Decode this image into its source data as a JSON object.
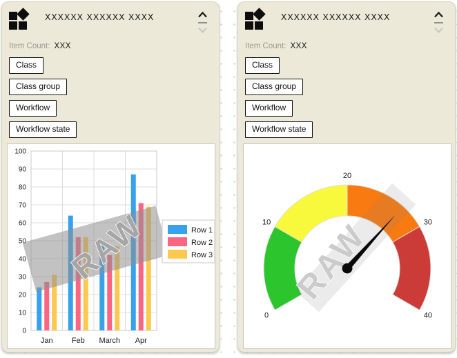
{
  "watermark_text": "RAW",
  "cards": [
    {
      "title": "XXXXXX XXXXXX XXXX",
      "item_count_label": "Item Count:",
      "item_count_value": "XXX",
      "filters": [
        "Class",
        "Class group",
        "Workflow",
        "Workflow state"
      ]
    },
    {
      "title": "XXXXXX XXXXXX XXXX",
      "item_count_label": "Item Count:",
      "item_count_value": "XXX",
      "filters": [
        "Class",
        "Class group",
        "Workflow",
        "Workflow state"
      ]
    }
  ],
  "chart_data": [
    {
      "type": "bar",
      "categories": [
        "Jan",
        "Feb",
        "March",
        "Apr"
      ],
      "series": [
        {
          "name": "Row 1",
          "color": "#36A2EB",
          "values": [
            24,
            64,
            50,
            87
          ]
        },
        {
          "name": "Row 2",
          "color": "#FA6583",
          "values": [
            27,
            52,
            42,
            71
          ]
        },
        {
          "name": "Row 3",
          "color": "#FBC94E",
          "values": [
            31,
            52,
            47,
            69
          ]
        }
      ],
      "ylim": [
        0,
        100
      ],
      "ytick_step": 10,
      "grid": true,
      "legend_position": "right",
      "watermark": "RAW"
    },
    {
      "type": "gauge",
      "min": 0,
      "max": 40,
      "value": 27,
      "ticks": [
        0,
        10,
        20,
        30,
        40
      ],
      "segments": [
        {
          "from": 0,
          "to": 10,
          "color": "#2DC52D"
        },
        {
          "from": 10,
          "to": 20,
          "color": "#F8F83C"
        },
        {
          "from": 20,
          "to": 30,
          "color": "#F97A10"
        },
        {
          "from": 30,
          "to": 40,
          "color": "#CB3C38"
        }
      ],
      "start_angle": 210,
      "end_angle": -30,
      "watermark": "RAW"
    }
  ]
}
